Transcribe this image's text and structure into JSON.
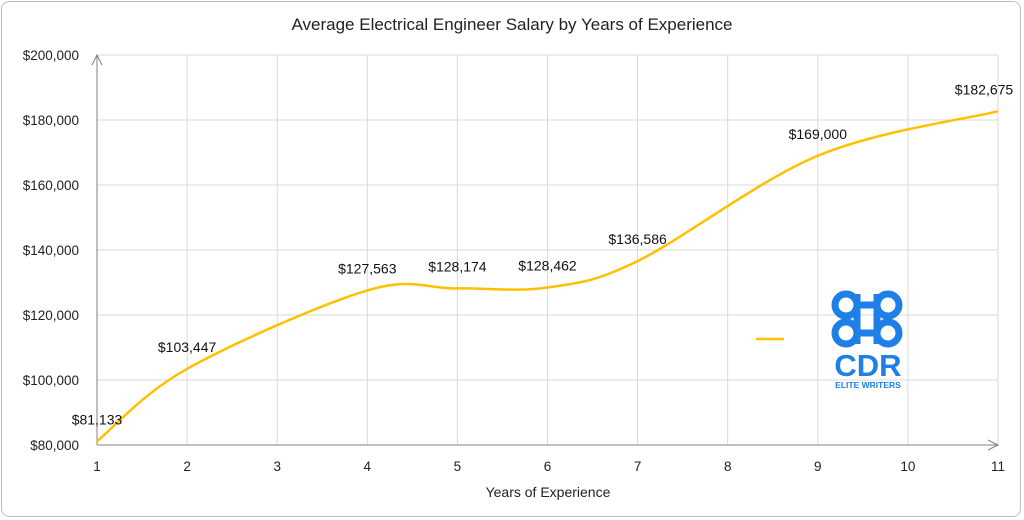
{
  "chart_data": {
    "type": "line",
    "title": "Average Electrical Engineer Salary by Years of Experience",
    "xlabel": "Years of Experience",
    "ylabel": "",
    "x": [
      1,
      2,
      4,
      5,
      6,
      7,
      9,
      11
    ],
    "series": [
      {
        "values": [
          81133,
          103447,
          127563,
          128174,
          128462,
          136586,
          169000,
          182675
        ],
        "labels": [
          "$81,133",
          "$103,447",
          "$127,563",
          "$128,174",
          "$128,462",
          "$136,586",
          "$169,000",
          "$182,675"
        ],
        "color": "#FFC000"
      }
    ],
    "xticks": [
      "1",
      "2",
      "3",
      "4",
      "5",
      "6",
      "7",
      "8",
      "9",
      "10",
      "11"
    ],
    "yticks": [
      "$80,000",
      "$100,000",
      "$120,000",
      "$140,000",
      "$160,000",
      "$180,000",
      "$200,000"
    ],
    "xlim": [
      1,
      11
    ],
    "ylim": [
      80000,
      200000
    ],
    "grid": true,
    "legend": "right"
  },
  "logo": {
    "mark": "CDR",
    "tagline": "ELITE WRITERS",
    "color": "#1E7FE6"
  }
}
